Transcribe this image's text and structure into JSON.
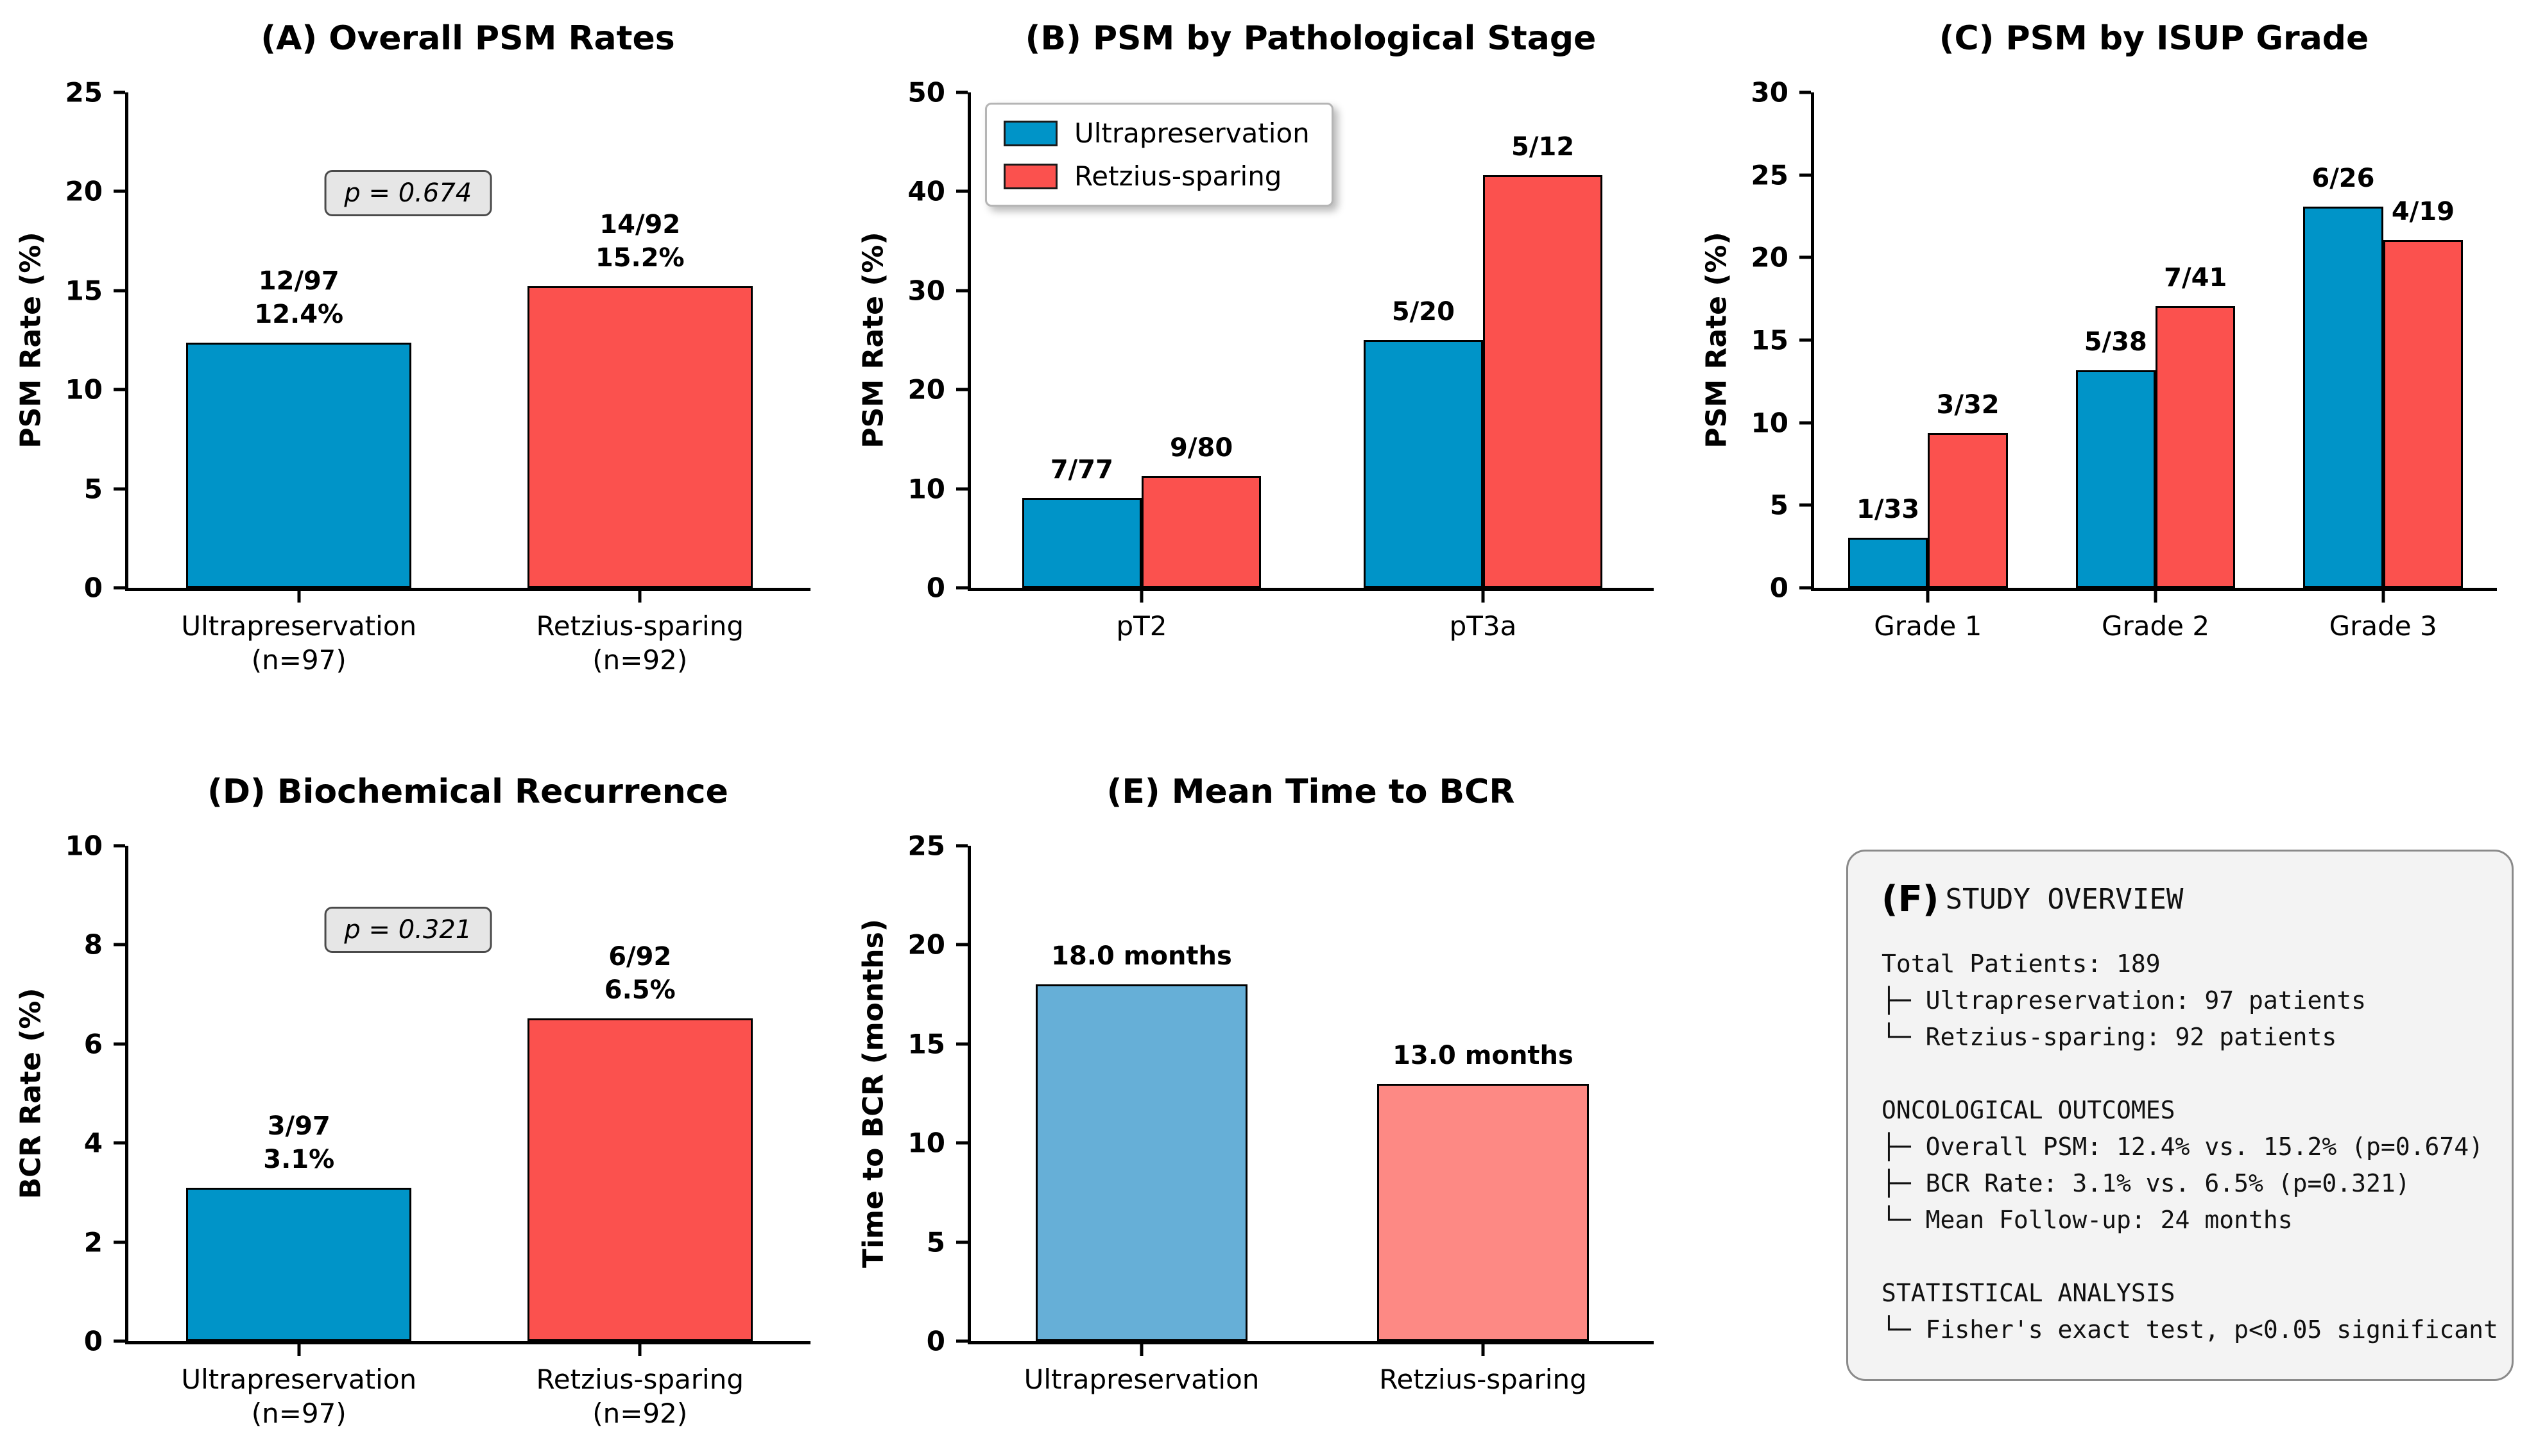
{
  "figure": {
    "background": "#ffffff",
    "description": "Six-panel oncological outcomes figure comparing Ultrapreservation vs Retzius-sparing"
  },
  "colors": {
    "ultrapreservation": "#0094c8",
    "retzius_sparing": "#fb514e",
    "ultrapreservation_light": "#66afd7",
    "retzius_sparing_light": "#fd8984",
    "bar_edge": "#000000",
    "p_box_bg": "#e6e6e6",
    "overview_box_bg": "#f3f3f3"
  },
  "legend": {
    "items": [
      {
        "label": "Ultrapreservation",
        "color": "#0094c8"
      },
      {
        "label": "Retzius-sparing",
        "color": "#fb514e"
      }
    ]
  },
  "overview": {
    "panel_label": "(F)",
    "title": "STUDY OVERVIEW",
    "lines": [
      "Total Patients: 189",
      "├─ Ultrapreservation: 97 patients",
      "└─ Retzius-sparing: 92 patients",
      "",
      "ONCOLOGICAL OUTCOMES",
      "├─ Overall PSM: 12.4% vs. 15.2% (p=0.674)",
      "├─ BCR Rate: 3.1% vs. 6.5% (p=0.321)",
      "└─ Mean Follow-up: 24 months",
      "",
      "STATISTICAL ANALYSIS",
      "└─ Fisher's exact test, p<0.05 significant"
    ]
  },
  "chart_data": [
    {
      "panel": "A",
      "type": "bar",
      "title": "(A) Overall PSM Rates",
      "ylabel": "PSM Rate (%)",
      "ylim": [
        0,
        25
      ],
      "yticks": [
        0,
        5,
        10,
        15,
        20,
        25
      ],
      "bar_width_pct": 33,
      "p_annotation": {
        "text": "p = 0.674",
        "x_pct": 41,
        "y_value": 19.9
      },
      "groups": [
        {
          "label": "Ultrapreservation\n(n=97)",
          "bars": [
            {
              "series": "Ultrapreservation",
              "count": "12/97",
              "value": 12.37,
              "label": "12/97\n12.4%",
              "color": "#0094c8"
            }
          ]
        },
        {
          "label": "Retzius-sparing\n(n=92)",
          "bars": [
            {
              "series": "Retzius-sparing",
              "count": "14/92",
              "value": 15.22,
              "label": "14/92\n15.2%",
              "color": "#fb514e"
            }
          ]
        }
      ]
    },
    {
      "panel": "B",
      "type": "bar",
      "title": "(B) PSM by Pathological Stage",
      "ylabel": "PSM Rate (%)",
      "ylim": [
        0,
        50
      ],
      "yticks": [
        0,
        10,
        20,
        30,
        40,
        50
      ],
      "bar_width_pct": 17.5,
      "show_legend": true,
      "groups": [
        {
          "label": "pT2",
          "bars": [
            {
              "series": "Ultrapreservation",
              "count": "7/77",
              "value": 9.09,
              "label": "7/77",
              "color": "#0094c8"
            },
            {
              "series": "Retzius-sparing",
              "count": "9/80",
              "value": 11.25,
              "label": "9/80",
              "color": "#fb514e"
            }
          ]
        },
        {
          "label": "pT3a",
          "bars": [
            {
              "series": "Ultrapreservation",
              "count": "5/20",
              "value": 25.0,
              "label": "5/20",
              "color": "#0094c8"
            },
            {
              "series": "Retzius-sparing",
              "count": "5/12",
              "value": 41.67,
              "label": "5/12",
              "color": "#fb514e"
            }
          ]
        }
      ]
    },
    {
      "panel": "C",
      "type": "bar",
      "title": "(C) PSM by ISUP Grade",
      "ylabel": "PSM Rate (%)",
      "ylim": [
        0,
        30
      ],
      "yticks": [
        0,
        5,
        10,
        15,
        20,
        25,
        30
      ],
      "bar_width_pct": 11.7,
      "groups": [
        {
          "label": "Grade 1",
          "bars": [
            {
              "series": "Ultrapreservation",
              "count": "1/33",
              "value": 3.03,
              "label": "1/33",
              "color": "#0094c8"
            },
            {
              "series": "Retzius-sparing",
              "count": "3/32",
              "value": 9.38,
              "label": "3/32",
              "color": "#fb514e"
            }
          ]
        },
        {
          "label": "Grade 2",
          "bars": [
            {
              "series": "Ultrapreservation",
              "count": "5/38",
              "value": 13.16,
              "label": "5/38",
              "color": "#0094c8"
            },
            {
              "series": "Retzius-sparing",
              "count": "7/41",
              "value": 17.07,
              "label": "7/41",
              "color": "#fb514e"
            }
          ]
        },
        {
          "label": "Grade 3",
          "bars": [
            {
              "series": "Ultrapreservation",
              "count": "6/26",
              "value": 23.08,
              "label": "6/26",
              "color": "#0094c8"
            },
            {
              "series": "Retzius-sparing",
              "count": "4/19",
              "value": 21.05,
              "label": "4/19",
              "color": "#fb514e"
            }
          ]
        }
      ]
    },
    {
      "panel": "D",
      "type": "bar",
      "title": "(D) Biochemical Recurrence",
      "ylabel": "BCR Rate (%)",
      "ylim": [
        0,
        10
      ],
      "yticks": [
        0,
        2,
        4,
        6,
        8,
        10
      ],
      "bar_width_pct": 33,
      "p_annotation": {
        "text": "p = 0.321",
        "x_pct": 41,
        "y_value": 8.3
      },
      "groups": [
        {
          "label": "Ultrapreservation\n(n=97)",
          "bars": [
            {
              "series": "Ultrapreservation",
              "count": "3/97",
              "value": 3.09,
              "label": "3/97\n3.1%",
              "color": "#0094c8"
            }
          ]
        },
        {
          "label": "Retzius-sparing\n(n=92)",
          "bars": [
            {
              "series": "Retzius-sparing",
              "count": "6/92",
              "value": 6.52,
              "label": "6/92\n6.5%",
              "color": "#fb514e"
            }
          ]
        }
      ]
    },
    {
      "panel": "E",
      "type": "bar",
      "title": "(E) Mean Time to BCR",
      "ylabel": "Time to BCR (months)",
      "ylim": [
        0,
        25
      ],
      "yticks": [
        0,
        5,
        10,
        15,
        20,
        25
      ],
      "bar_width_pct": 31,
      "groups": [
        {
          "label": "Ultrapreservation",
          "bars": [
            {
              "series": "Ultrapreservation",
              "value": 18.0,
              "label": "18.0 months",
              "color": "#66afd7"
            }
          ]
        },
        {
          "label": "Retzius-sparing",
          "bars": [
            {
              "series": "Retzius-sparing",
              "value": 13.0,
              "label": "13.0 months",
              "color": "#fd8984"
            }
          ]
        }
      ]
    }
  ]
}
